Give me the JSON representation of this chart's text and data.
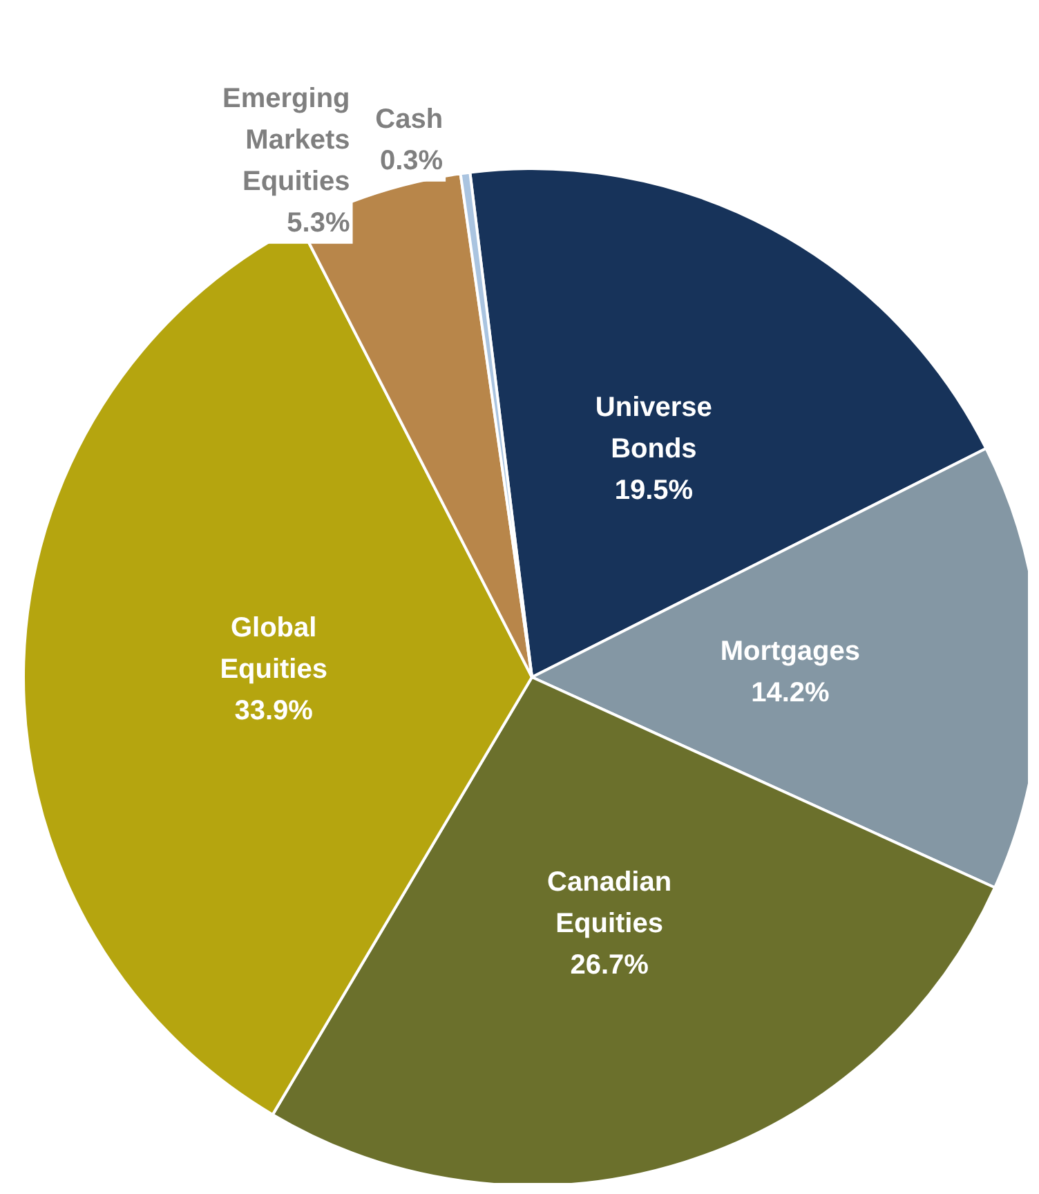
{
  "chart_data": {
    "type": "pie",
    "categories": [
      "Universe Bonds",
      "Mortgages",
      "Canadian Equities",
      "Global Equities",
      "Emerging Markets Equities",
      "Cash"
    ],
    "values": [
      19.5,
      14.2,
      26.7,
      33.9,
      5.3,
      0.3
    ],
    "colors": [
      "#17335a",
      "#8497a4",
      "#6b702c",
      "#b5a50f",
      "#b8864a",
      "#aac4e0"
    ],
    "value_labels": [
      "19.5%",
      "14.2%",
      "26.7%",
      "33.9%",
      "5.3%",
      "0.3%"
    ],
    "legend": false
  }
}
